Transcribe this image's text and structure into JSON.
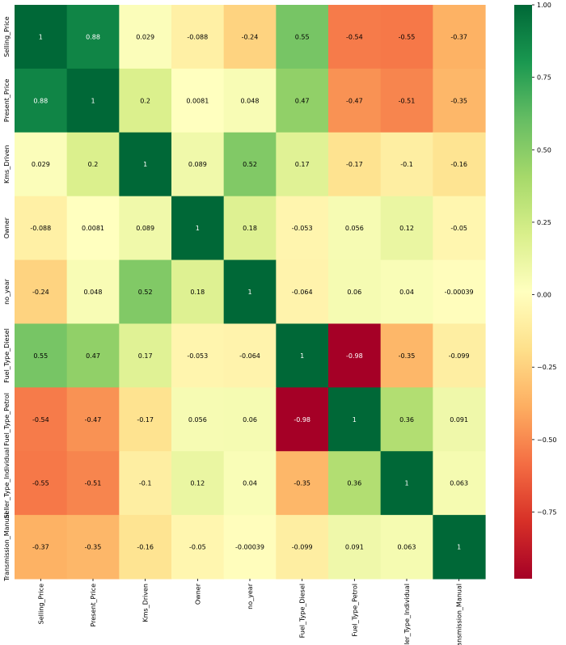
{
  "chart_data": {
    "type": "heatmap",
    "title": "",
    "xlabel": "",
    "ylabel": "",
    "labels": [
      "Selling_Price",
      "Present_Price",
      "Kms_Driven",
      "Owner",
      "no_year",
      "Fuel_Type_Diesel",
      "Fuel_Type_Petrol",
      "Seller_Type_Individual",
      "Transmission_Manual"
    ],
    "values": [
      [
        1,
        0.88,
        0.029,
        -0.088,
        -0.24,
        0.55,
        -0.54,
        -0.55,
        -0.37
      ],
      [
        0.88,
        1,
        0.2,
        0.0081,
        0.048,
        0.47,
        -0.47,
        -0.51,
        -0.35
      ],
      [
        0.029,
        0.2,
        1,
        0.089,
        0.52,
        0.17,
        -0.17,
        -0.1,
        -0.16
      ],
      [
        -0.088,
        0.0081,
        0.089,
        1,
        0.18,
        -0.053,
        0.056,
        0.12,
        -0.05
      ],
      [
        -0.24,
        0.048,
        0.52,
        0.18,
        1,
        -0.064,
        0.06,
        0.04,
        -0.00039
      ],
      [
        0.55,
        0.47,
        0.17,
        -0.053,
        -0.064,
        1,
        -0.98,
        -0.35,
        -0.099
      ],
      [
        -0.54,
        -0.47,
        -0.17,
        0.056,
        0.06,
        -0.98,
        1,
        0.36,
        0.091
      ],
      [
        -0.55,
        -0.51,
        -0.1,
        0.12,
        0.04,
        -0.35,
        0.36,
        1,
        0.063
      ],
      [
        -0.37,
        -0.35,
        -0.16,
        -0.05,
        -0.00039,
        -0.099,
        0.091,
        0.063,
        1
      ]
    ],
    "colormap": "RdYlGn",
    "vmin": -0.98,
    "vmax": 1,
    "annotated": true,
    "colorbar": {
      "ticks": [
        1.0,
        0.75,
        0.5,
        0.25,
        0.0,
        -0.25,
        -0.5,
        -0.75
      ],
      "tick_labels": [
        "1.00",
        "0.75",
        "0.50",
        "0.25",
        "0.00",
        "−0.25",
        "−0.50",
        "−0.75"
      ],
      "placement": "right"
    },
    "grid": false
  }
}
